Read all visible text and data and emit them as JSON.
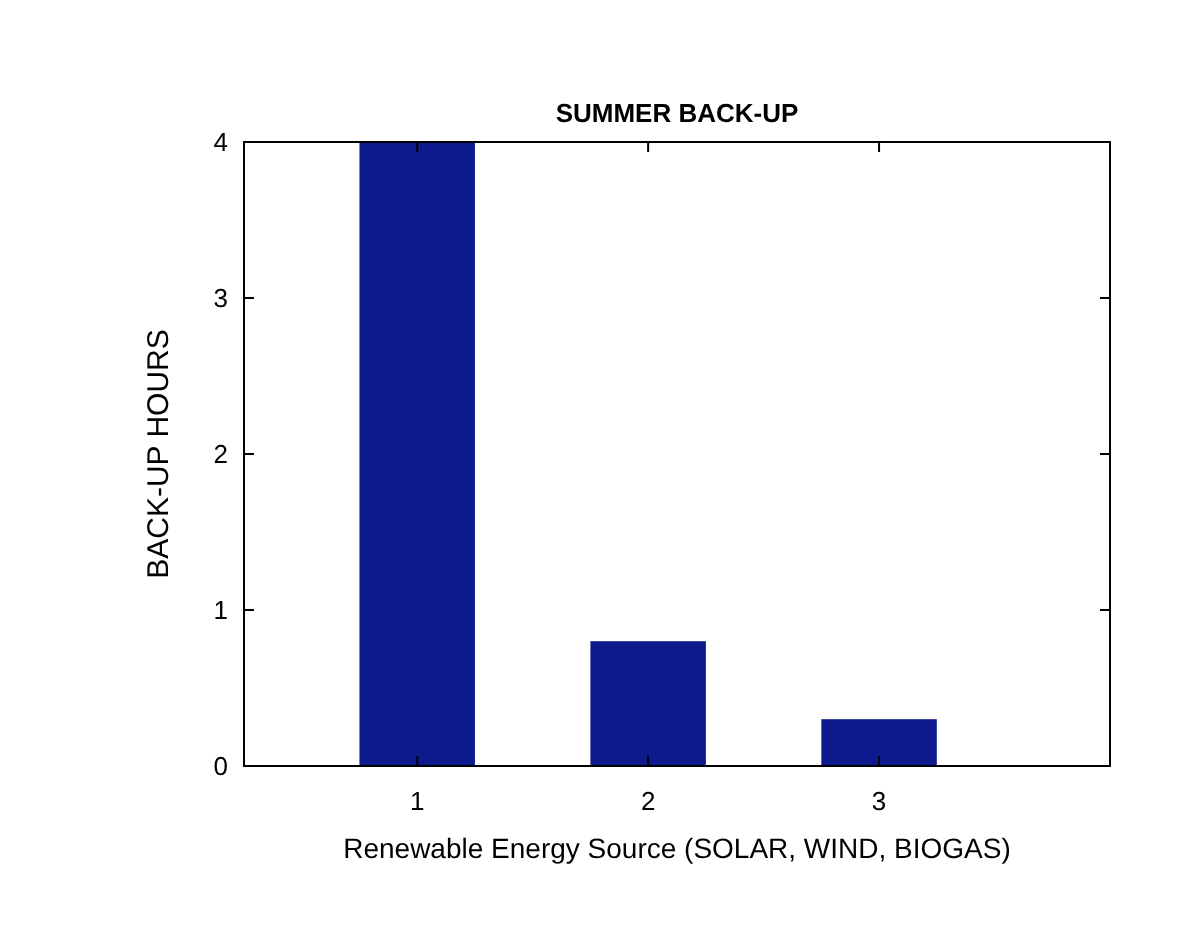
{
  "chart_data": {
    "type": "bar",
    "title": "SUMMER BACK-UP",
    "xlabel": "Renewable Energy Source (SOLAR, WIND, BIOGAS)",
    "ylabel": "BACK-UP HOURS",
    "x": [
      1,
      2,
      3
    ],
    "values": [
      4,
      0.8,
      0.3
    ],
    "color": "#0c1a8e",
    "xlim": [
      0.25,
      4
    ],
    "xticks": [
      1,
      2,
      3
    ],
    "ylim": [
      0,
      4
    ],
    "yticks": [
      0,
      1,
      2,
      3,
      4
    ],
    "grid": false
  }
}
